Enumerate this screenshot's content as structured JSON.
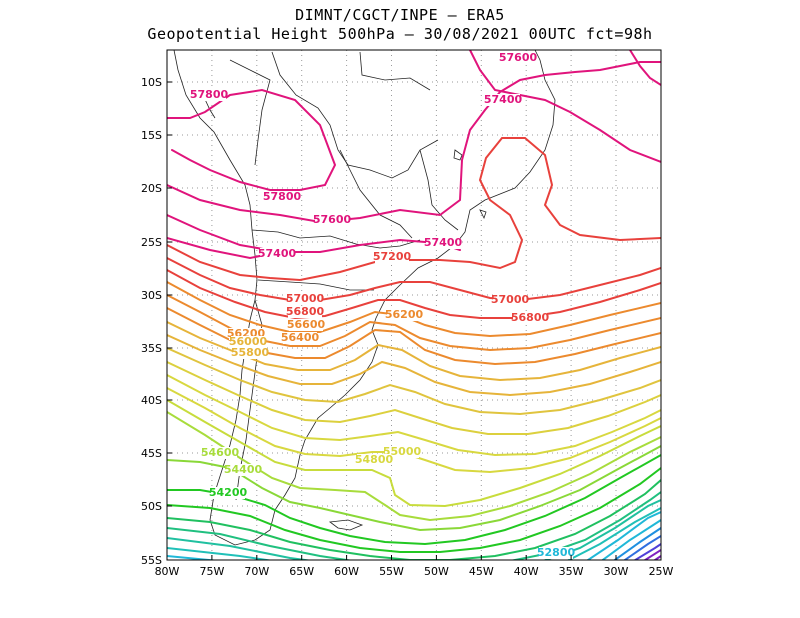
{
  "header": {
    "line1": "DIMNT/CGCT/INPE  –  ERA5",
    "line2": "Geopotential Height 500hPa –  30/08/2021 00UTC fct=98h"
  },
  "axes": {
    "lat_labels": [
      "10S",
      "15S",
      "20S",
      "25S",
      "30S",
      "35S",
      "40S",
      "45S",
      "50S",
      "55S"
    ],
    "lon_labels": [
      "80W",
      "75W",
      "70W",
      "65W",
      "60W",
      "55W",
      "50W",
      "45W",
      "40W",
      "35W",
      "30W",
      "25W"
    ]
  },
  "colors": {
    "magenta": "#e0147c",
    "red": "#e8413c",
    "orange": "#ec8a2e",
    "yellow_orange": "#e6b43a",
    "yellow": "#d8d840",
    "yellow_green": "#a8dc3c",
    "green": "#22c822",
    "teal": "#20c0a0",
    "cyan": "#20b8d8",
    "blue": "#3070e0",
    "purple": "#8020c0"
  },
  "contour_labels": [
    {
      "text": "57600",
      "color": "magenta"
    },
    {
      "text": "57400",
      "color": "magenta"
    },
    {
      "text": "57800",
      "color": "magenta"
    },
    {
      "text": "57800",
      "color": "magenta"
    },
    {
      "text": "57600",
      "color": "magenta"
    },
    {
      "text": "57400",
      "color": "magenta"
    },
    {
      "text": "57400",
      "color": "magenta"
    },
    {
      "text": "57200",
      "color": "red"
    },
    {
      "text": "57000",
      "color": "red"
    },
    {
      "text": "57000",
      "color": "red"
    },
    {
      "text": "56800",
      "color": "red"
    },
    {
      "text": "56800",
      "color": "red"
    },
    {
      "text": "56600",
      "color": "orange"
    },
    {
      "text": "56400",
      "color": "orange"
    },
    {
      "text": "56200",
      "color": "orange"
    },
    {
      "text": "56200",
      "color": "orange"
    },
    {
      "text": "56000",
      "color": "yellow_orange"
    },
    {
      "text": "55800",
      "color": "yellow_orange"
    },
    {
      "text": "55000",
      "color": "yellow"
    },
    {
      "text": "54800",
      "color": "yellow"
    },
    {
      "text": "54600",
      "color": "yellow_green"
    },
    {
      "text": "54400",
      "color": "yellow_green"
    },
    {
      "text": "54200",
      "color": "green"
    },
    {
      "text": "52800",
      "color": "cyan"
    }
  ]
}
